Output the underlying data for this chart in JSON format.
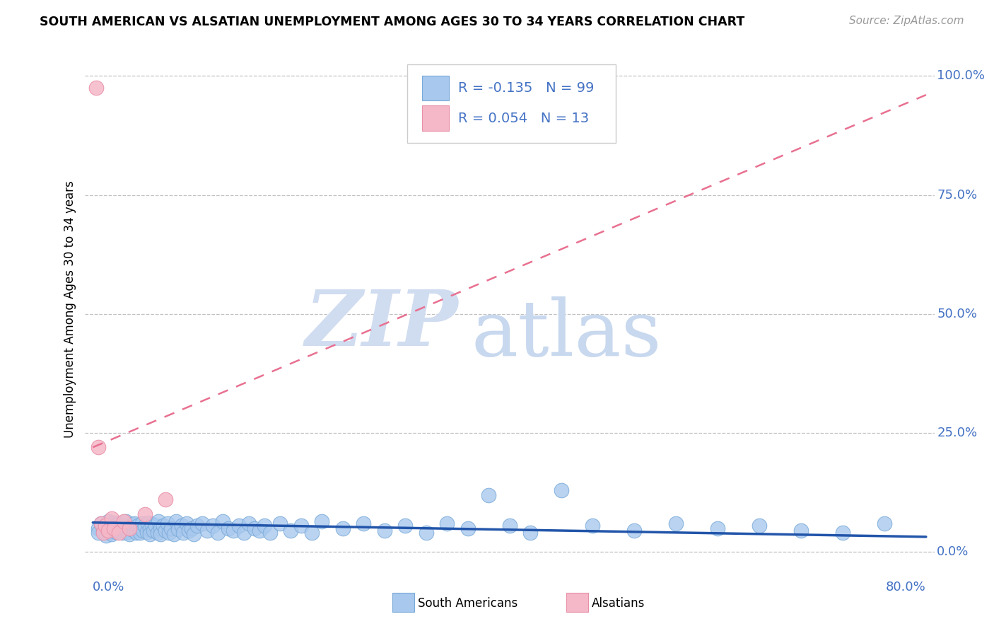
{
  "title": "SOUTH AMERICAN VS ALSATIAN UNEMPLOYMENT AMONG AGES 30 TO 34 YEARS CORRELATION CHART",
  "source": "Source: ZipAtlas.com",
  "ylabel_label": "Unemployment Among Ages 30 to 34 years",
  "watermark_zip": "ZIP",
  "watermark_atlas": "atlas",
  "blue_color": "#A8C8EE",
  "blue_edge_color": "#7AAAD8",
  "pink_color": "#F5B8C8",
  "pink_edge_color": "#E890A8",
  "blue_line_color": "#2255AA",
  "pink_line_color": "#E87090",
  "text_color": "#4472C4",
  "background_color": "#FFFFFF",
  "grid_color": "#BBBBBB",
  "xlim_low": -0.008,
  "xlim_high": 0.808,
  "ylim_low": -0.02,
  "ylim_high": 1.04,
  "ytick_vals": [
    0.0,
    0.25,
    0.5,
    0.75,
    1.0
  ],
  "ytick_labels": [
    "0.0%",
    "25.0%",
    "50.0%",
    "75.0%",
    "100.0%"
  ],
  "xtick_left_label": "0.0%",
  "xtick_right_label": "80.0%",
  "legend_entry1": "R = -0.135   N = 99",
  "legend_entry2": "R = 0.054   N = 13",
  "bottom_legend_blue": "South Americans",
  "bottom_legend_pink": "Alsatians",
  "blue_trend_x": [
    0.0,
    0.8
  ],
  "blue_trend_y": [
    0.062,
    0.032
  ],
  "pink_trend_x": [
    0.0,
    0.8
  ],
  "pink_trend_y": [
    0.22,
    0.96
  ],
  "blue_x": [
    0.005,
    0.005,
    0.008,
    0.01,
    0.012,
    0.013,
    0.015,
    0.015,
    0.017,
    0.018,
    0.02,
    0.02,
    0.022,
    0.023,
    0.025,
    0.025,
    0.027,
    0.028,
    0.03,
    0.03,
    0.032,
    0.033,
    0.035,
    0.035,
    0.037,
    0.038,
    0.04,
    0.04,
    0.042,
    0.043,
    0.045,
    0.045,
    0.047,
    0.048,
    0.05,
    0.052,
    0.053,
    0.055,
    0.055,
    0.057,
    0.058,
    0.06,
    0.062,
    0.063,
    0.065,
    0.065,
    0.068,
    0.07,
    0.072,
    0.073,
    0.075,
    0.078,
    0.08,
    0.082,
    0.085,
    0.087,
    0.09,
    0.092,
    0.095,
    0.097,
    0.1,
    0.105,
    0.11,
    0.115,
    0.12,
    0.125,
    0.13,
    0.135,
    0.14,
    0.145,
    0.15,
    0.155,
    0.16,
    0.165,
    0.17,
    0.18,
    0.19,
    0.2,
    0.21,
    0.22,
    0.24,
    0.26,
    0.28,
    0.3,
    0.32,
    0.34,
    0.36,
    0.38,
    0.4,
    0.42,
    0.45,
    0.48,
    0.52,
    0.56,
    0.6,
    0.64,
    0.68,
    0.72,
    0.76
  ],
  "blue_y": [
    0.05,
    0.04,
    0.06,
    0.045,
    0.055,
    0.035,
    0.065,
    0.042,
    0.052,
    0.038,
    0.048,
    0.062,
    0.042,
    0.058,
    0.045,
    0.06,
    0.05,
    0.04,
    0.055,
    0.045,
    0.065,
    0.042,
    0.052,
    0.038,
    0.048,
    0.058,
    0.045,
    0.06,
    0.04,
    0.055,
    0.05,
    0.04,
    0.06,
    0.045,
    0.055,
    0.042,
    0.062,
    0.048,
    0.038,
    0.058,
    0.045,
    0.055,
    0.04,
    0.065,
    0.05,
    0.038,
    0.055,
    0.045,
    0.06,
    0.04,
    0.05,
    0.038,
    0.065,
    0.048,
    0.055,
    0.04,
    0.06,
    0.045,
    0.05,
    0.038,
    0.055,
    0.06,
    0.045,
    0.055,
    0.04,
    0.065,
    0.05,
    0.045,
    0.055,
    0.04,
    0.06,
    0.05,
    0.045,
    0.055,
    0.04,
    0.06,
    0.045,
    0.055,
    0.04,
    0.065,
    0.05,
    0.06,
    0.045,
    0.055,
    0.04,
    0.06,
    0.05,
    0.12,
    0.055,
    0.04,
    0.13,
    0.055,
    0.045,
    0.06,
    0.05,
    0.055,
    0.045,
    0.04,
    0.06
  ],
  "pink_x": [
    0.003,
    0.005,
    0.008,
    0.01,
    0.012,
    0.015,
    0.018,
    0.02,
    0.025,
    0.03,
    0.035,
    0.05,
    0.07
  ],
  "pink_y": [
    0.975,
    0.22,
    0.06,
    0.04,
    0.055,
    0.045,
    0.07,
    0.05,
    0.04,
    0.065,
    0.05,
    0.08,
    0.11
  ]
}
